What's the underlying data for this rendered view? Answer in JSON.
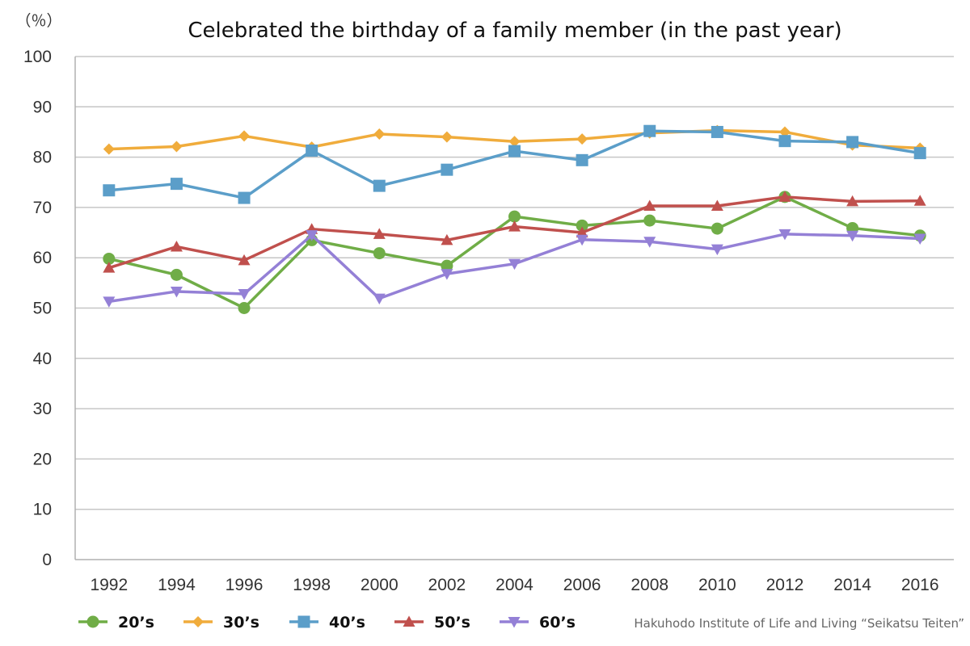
{
  "chart_data": {
    "type": "line",
    "title": "Celebrated the birthday of a family member (in the past year)",
    "unit_label": "（％）",
    "ylim": [
      0,
      100
    ],
    "yticks": [
      0,
      10,
      20,
      30,
      40,
      50,
      60,
      70,
      80,
      90,
      100
    ],
    "categories": [
      "1992",
      "1994",
      "1996",
      "1998",
      "2000",
      "2002",
      "2004",
      "2006",
      "2008",
      "2010",
      "2012",
      "2014",
      "2016"
    ],
    "grid": true,
    "legend_position": "bottom-left",
    "series": [
      {
        "name": "20’s",
        "color": "#70AD47",
        "marker": "circle",
        "values": [
          59.8,
          56.6,
          50.0,
          63.5,
          60.9,
          58.4,
          68.2,
          66.4,
          67.4,
          65.8,
          72.1,
          65.9,
          64.4
        ]
      },
      {
        "name": "30’s",
        "color": "#F0AC3C",
        "marker": "diamond",
        "values": [
          81.6,
          82.1,
          84.2,
          82.0,
          84.6,
          84.0,
          83.1,
          83.6,
          84.8,
          85.3,
          85.0,
          82.4,
          81.8
        ]
      },
      {
        "name": "40’s",
        "color": "#5B9EC9",
        "marker": "square",
        "values": [
          73.4,
          74.7,
          71.9,
          81.3,
          74.3,
          77.5,
          81.2,
          79.4,
          85.2,
          85.0,
          83.2,
          83.0,
          80.8
        ]
      },
      {
        "name": "50’s",
        "color": "#C0504D",
        "marker": "triangle",
        "values": [
          58.0,
          62.2,
          59.5,
          65.7,
          64.7,
          63.5,
          66.2,
          65.0,
          70.3,
          70.3,
          72.1,
          71.2,
          71.3
        ]
      },
      {
        "name": "60’s",
        "color": "#9480D6",
        "marker": "triangle-down",
        "values": [
          51.3,
          53.3,
          52.8,
          64.5,
          51.9,
          56.8,
          58.8,
          63.6,
          63.2,
          61.7,
          64.7,
          64.4,
          63.8
        ]
      }
    ],
    "source": "Hakuhodo Institute of Life and Living “Seikatsu Teiten”"
  }
}
